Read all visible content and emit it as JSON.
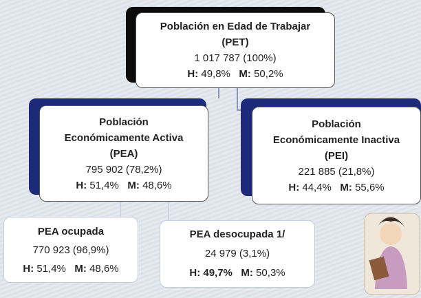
{
  "nodes": [
    {
      "title": [
        "Población en Edad de Trabajar",
        "(PET)"
      ],
      "value": "1 017 787 (100%)",
      "h_label": "H:",
      "h_value": "49,8%",
      "m_label": "M:",
      "m_value": "50,2%"
    },
    {
      "title": [
        "Población",
        "Económicamente Activa",
        "(PEA)"
      ],
      "value": "795 902 (78,2%)",
      "h_label": "H:",
      "h_value": "51,4%",
      "m_label": "M:",
      "m_value": "48,6%"
    },
    {
      "title": [
        "Población",
        "Económicamente Inactiva",
        "(PEI)"
      ],
      "value": "221 885 (21,8%)",
      "h_label": "H:",
      "h_value": "44,4%",
      "m_label": "M:",
      "m_value": "55,6%"
    },
    {
      "title": [
        "PEA ocupada"
      ],
      "value": "770 923 (96,9%)",
      "h_label": "H:",
      "h_value": "51,4%",
      "m_label": "M:",
      "m_value": "48,6%"
    },
    {
      "title": [
        "PEA desocupada 1/"
      ],
      "value": "24 979 (3,1%)",
      "h_label": "H:",
      "h_value": "49,7%",
      "m_label": "M:",
      "m_value": "50,3%"
    }
  ]
}
